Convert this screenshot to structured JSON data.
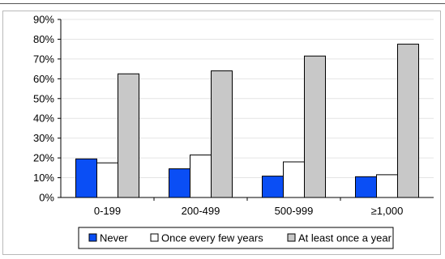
{
  "chart_data": {
    "type": "bar",
    "categories": [
      "0-199",
      "200-499",
      "500-999",
      "≥1,000"
    ],
    "series": [
      {
        "name": "Never",
        "values": [
          19.5,
          14.5,
          10.8,
          10.5
        ],
        "color": "#0a4ef5"
      },
      {
        "name": "Once every few years",
        "values": [
          17.5,
          21.5,
          18.0,
          11.5
        ],
        "color": "#ffffff"
      },
      {
        "name": "At least once a year",
        "values": [
          62.5,
          64.0,
          71.5,
          77.5
        ],
        "color": "#c8c8c8"
      }
    ],
    "y_ticks": [
      "0%",
      "10%",
      "20%",
      "30%",
      "40%",
      "50%",
      "60%",
      "70%",
      "80%",
      "90%"
    ],
    "ylim": [
      0,
      90
    ],
    "grid": true,
    "legend_position": "bottom"
  }
}
